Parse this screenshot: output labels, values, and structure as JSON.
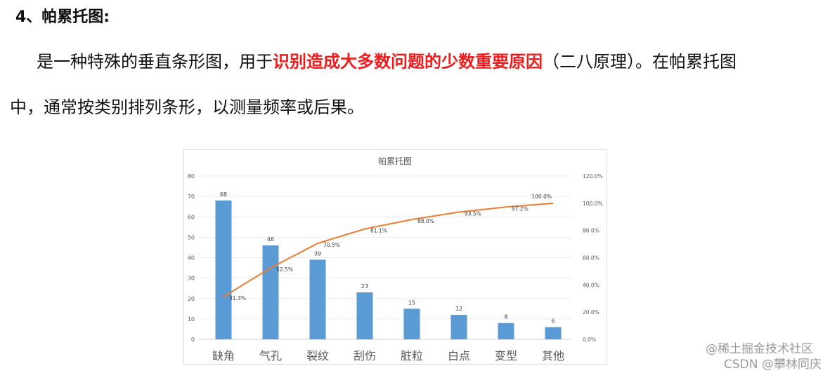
{
  "heading": "4、帕累托图:",
  "paragraph": {
    "line1_before": "是一种特殊的垂直条形图，用于",
    "line1_highlight": "识别造成大多数问题的少数重要原因",
    "line1_after": "（二八原理）。在帕累托图",
    "line2": "中，通常按类别排列条形，以测量频率或后果。",
    "highlight_color": "#ee1c1c"
  },
  "chart_data": {
    "type": "bar+line",
    "title": "帕累托图",
    "categories": [
      "缺角",
      "气孔",
      "裂纹",
      "刮伤",
      "脏粒",
      "白点",
      "变型",
      "其他"
    ],
    "series": [
      {
        "type": "bar",
        "axis": "left",
        "values": [
          68,
          46,
          39,
          23,
          15,
          12,
          8,
          6
        ],
        "data_labels": [
          "68",
          "46",
          "39",
          "23",
          "15",
          "12",
          "8",
          "6"
        ],
        "color": "#5b9bd5"
      },
      {
        "type": "line",
        "axis": "right",
        "values": [
          31.3,
          52.5,
          70.5,
          81.1,
          88.0,
          93.5,
          97.2,
          100.0
        ],
        "data_labels": [
          "31.3%",
          "52.5%",
          "70.5%",
          "81.1%",
          "88.0%",
          "93.5%",
          "97.2%",
          "100.0%"
        ],
        "color": "#ed7d31"
      }
    ],
    "left_axis": {
      "ylim": [
        0,
        80
      ],
      "ticks": [
        "0",
        "10",
        "20",
        "30",
        "40",
        "50",
        "60",
        "70",
        "80"
      ]
    },
    "right_axis": {
      "ylim": [
        0,
        120
      ],
      "ticks": [
        "0.0%",
        "20.0%",
        "40.0%",
        "60.0%",
        "80.0%",
        "100.0%",
        "120.0%"
      ]
    },
    "grid": true,
    "legend": "none"
  },
  "watermark": {
    "line1": "@稀土掘金技术社区",
    "line2": "CSDN @攀林同庆"
  }
}
